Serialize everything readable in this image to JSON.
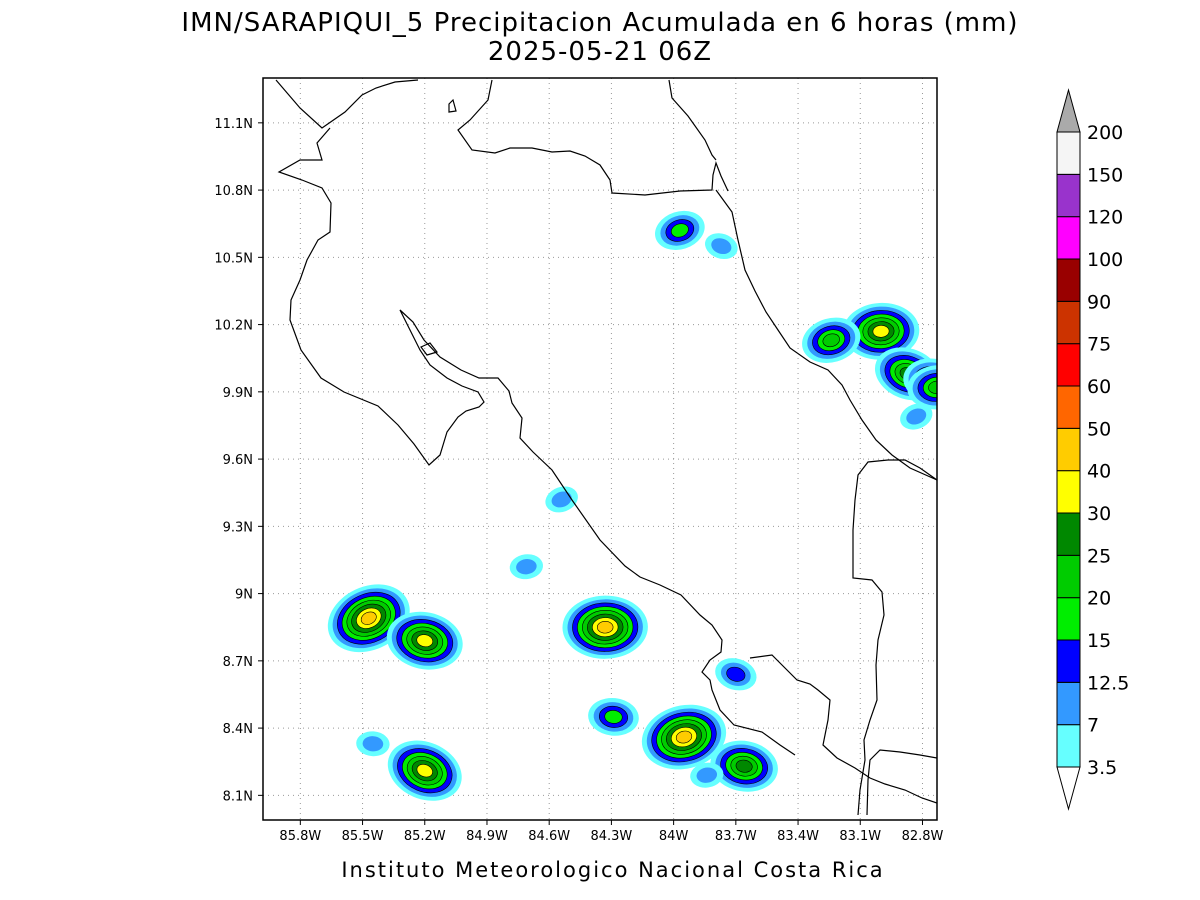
{
  "title_line1": "IMN/SARAPIQUI_5 Precipitacion Acumulada en 6 horas (mm)",
  "title_line2": "2025-05-21 06Z",
  "footer": "Instituto Meteorologico Nacional Costa Rica",
  "axes": {
    "lon_range": [
      -85.98,
      -82.73
    ],
    "lat_range": [
      7.99,
      11.3
    ],
    "lon_ticks": [
      {
        "value": -85.8,
        "label": "85.8W"
      },
      {
        "value": -85.5,
        "label": "85.5W"
      },
      {
        "value": -85.2,
        "label": "85.2W"
      },
      {
        "value": -84.9,
        "label": "84.9W"
      },
      {
        "value": -84.6,
        "label": "84.6W"
      },
      {
        "value": -84.3,
        "label": "84.3W"
      },
      {
        "value": -84.0,
        "label": "84W"
      },
      {
        "value": -83.7,
        "label": "83.7W"
      },
      {
        "value": -83.4,
        "label": "83.4W"
      },
      {
        "value": -83.1,
        "label": "83.1W"
      },
      {
        "value": -82.8,
        "label": "82.8W"
      }
    ],
    "lat_ticks": [
      {
        "value": 11.1,
        "label": "11.1N"
      },
      {
        "value": 10.8,
        "label": "10.8N"
      },
      {
        "value": 10.5,
        "label": "10.5N"
      },
      {
        "value": 10.2,
        "label": "10.2N"
      },
      {
        "value": 9.9,
        "label": "9.9N"
      },
      {
        "value": 9.6,
        "label": "9.6N"
      },
      {
        "value": 9.3,
        "label": "9.3N"
      },
      {
        "value": 9.0,
        "label": "9N"
      },
      {
        "value": 8.7,
        "label": "8.7N"
      },
      {
        "value": 8.4,
        "label": "8.4N"
      },
      {
        "value": 8.1,
        "label": "8.1N"
      }
    ],
    "grid": "dotted"
  },
  "colorbar": {
    "levels": [
      "3.5",
      "7",
      "12.5",
      "15",
      "20",
      "25",
      "30",
      "40",
      "50",
      "60",
      "75",
      "90",
      "100",
      "120",
      "150",
      "200"
    ],
    "colors": [
      "#66ffff",
      "#3399ff",
      "#0000ff",
      "#00ee00",
      "#00cc00",
      "#008800",
      "#ffff00",
      "#ffcc00",
      "#ff6600",
      "#ff0000",
      "#cc3300",
      "#990000",
      "#ff00ff",
      "#9933cc",
      "#f5f5f5",
      "#aaaaaa"
    ],
    "low_arrow_color": "#ffffff",
    "high_arrow_color": "#aaaaaa"
  },
  "chart_data": {
    "type": "heatmap",
    "variable": "6-hour accumulated precipitation (mm)",
    "cells": [
      {
        "lon": -85.47,
        "lat": 8.89,
        "max_mm": 40
      },
      {
        "lon": -85.2,
        "lat": 8.79,
        "max_mm": 30
      },
      {
        "lon": -84.33,
        "lat": 8.85,
        "max_mm": 40
      },
      {
        "lon": -83.95,
        "lat": 8.36,
        "max_mm": 40
      },
      {
        "lon": -85.2,
        "lat": 8.21,
        "max_mm": 30
      },
      {
        "lon": -83.66,
        "lat": 8.23,
        "max_mm": 25
      },
      {
        "lon": -83.0,
        "lat": 10.17,
        "max_mm": 30
      },
      {
        "lon": -83.24,
        "lat": 10.13,
        "max_mm": 20
      },
      {
        "lon": -82.87,
        "lat": 9.98,
        "max_mm": 25
      },
      {
        "lon": -82.75,
        "lat": 9.95,
        "max_mm": 20
      },
      {
        "lon": -82.73,
        "lat": 9.92,
        "max_mm": 20
      },
      {
        "lon": -83.97,
        "lat": 10.62,
        "max_mm": 15
      },
      {
        "lon": -83.77,
        "lat": 10.55,
        "max_mm": 7
      },
      {
        "lon": -84.29,
        "lat": 8.45,
        "max_mm": 15
      },
      {
        "lon": -84.71,
        "lat": 9.12,
        "max_mm": 7
      },
      {
        "lon": -84.54,
        "lat": 9.42,
        "max_mm": 7
      },
      {
        "lon": -83.7,
        "lat": 8.64,
        "max_mm": 12.5
      },
      {
        "lon": -85.45,
        "lat": 8.33,
        "max_mm": 7
      },
      {
        "lon": -83.84,
        "lat": 8.19,
        "max_mm": 7
      },
      {
        "lon": -82.83,
        "lat": 9.79,
        "max_mm": 7
      }
    ]
  }
}
